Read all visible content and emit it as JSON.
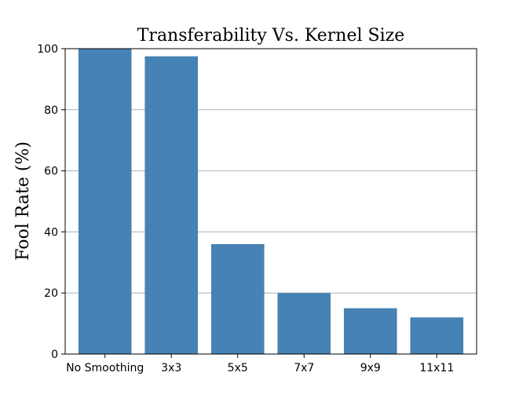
{
  "chart_data": {
    "type": "bar",
    "title": "Transferability Vs. Kernel Size",
    "xlabel": "",
    "ylabel": "Fool Rate (%)",
    "categories": [
      "No Smoothing",
      "3x3",
      "5x5",
      "7x7",
      "9x9",
      "11x11"
    ],
    "values": [
      100,
      97.5,
      36,
      20,
      15,
      12
    ],
    "ylim": [
      0,
      100
    ],
    "yticks": [
      0,
      20,
      40,
      60,
      80,
      100
    ],
    "grid": "y",
    "bar_color": "#4682b4"
  }
}
